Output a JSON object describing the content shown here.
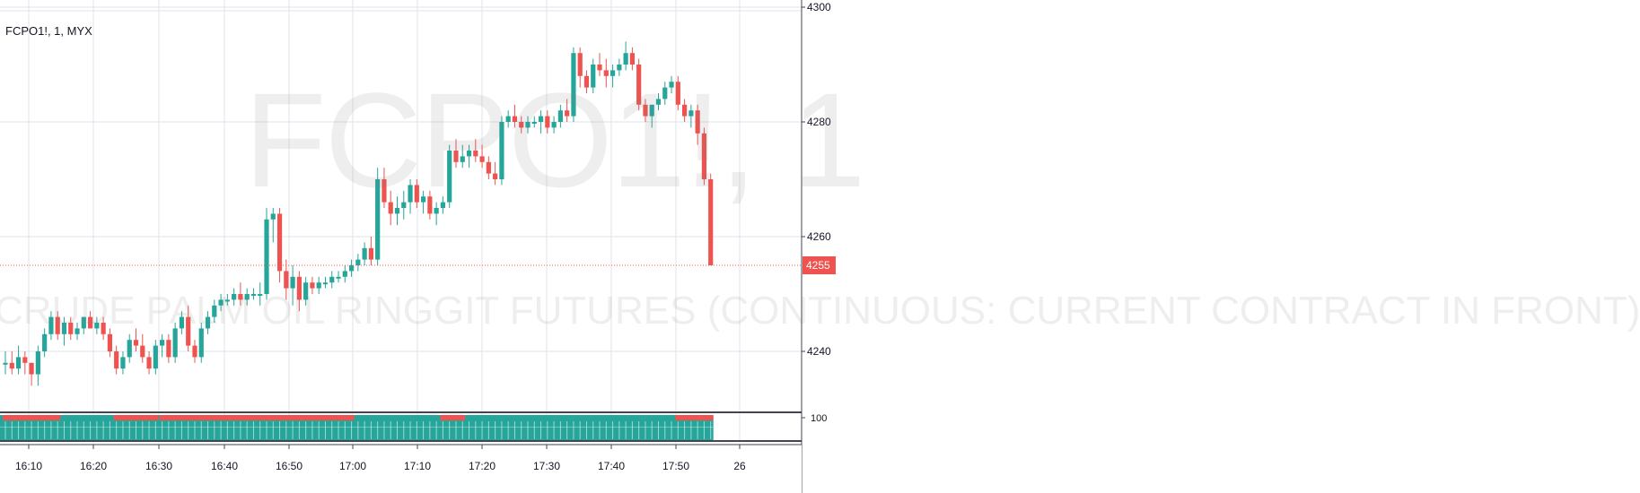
{
  "header": {
    "symbol_line": "FCPO1!, 1, MYX"
  },
  "watermark": {
    "symbol": "FCPO1!, 1",
    "description": "CRUDE PALM OIL RINGGIT FUTURES (CONTINUOUS: CURRENT CONTRACT IN FRONT)"
  },
  "colors": {
    "up": "#26a69a",
    "down": "#ef5350",
    "grid": "#e0e3eb",
    "axis_text": "#131722"
  },
  "chart_data": {
    "type": "candlestick",
    "price_axis": {
      "min": 4230,
      "max": 4300,
      "ticks": [
        4300,
        4280,
        4260,
        4240
      ]
    },
    "last_price": 4255,
    "time_axis_labels": [
      "16:10",
      "16:20",
      "16:30",
      "16:40",
      "16:50",
      "17:00",
      "17:10",
      "17:20",
      "17:30",
      "17:40",
      "17:50",
      "26"
    ],
    "indicator": {
      "label": "100"
    },
    "candles": [
      [
        4238,
        4240,
        4236,
        4238
      ],
      [
        4238,
        4240,
        4236,
        4237
      ],
      [
        4237,
        4241,
        4236,
        4239
      ],
      [
        4239,
        4240,
        4236,
        4238
      ],
      [
        4238,
        4238,
        4234,
        4236
      ],
      [
        4236,
        4241,
        4234,
        4240
      ],
      [
        4240,
        4244,
        4239,
        4243
      ],
      [
        4243,
        4247,
        4242,
        4246
      ],
      [
        4246,
        4247,
        4242,
        4243
      ],
      [
        4243,
        4246,
        4241,
        4245
      ],
      [
        4245,
        4246,
        4242,
        4243
      ],
      [
        4243,
        4245,
        4242,
        4244
      ],
      [
        4244,
        4246,
        4243,
        4246
      ],
      [
        4246,
        4247,
        4244,
        4244
      ],
      [
        4244,
        4246,
        4243,
        4245
      ],
      [
        4245,
        4246,
        4242,
        4243
      ],
      [
        4243,
        4244,
        4239,
        4240
      ],
      [
        4240,
        4241,
        4236,
        4237
      ],
      [
        4237,
        4240,
        4236,
        4239
      ],
      [
        4239,
        4243,
        4238,
        4242
      ],
      [
        4242,
        4244,
        4240,
        4241
      ],
      [
        4241,
        4243,
        4238,
        4239
      ],
      [
        4239,
        4240,
        4236,
        4237
      ],
      [
        4237,
        4242,
        4236,
        4241
      ],
      [
        4241,
        4243,
        4239,
        4242
      ],
      [
        4242,
        4243,
        4238,
        4239
      ],
      [
        4239,
        4245,
        4238,
        4244
      ],
      [
        4244,
        4247,
        4243,
        4246
      ],
      [
        4246,
        4248,
        4240,
        4241
      ],
      [
        4241,
        4242,
        4238,
        4239
      ],
      [
        4239,
        4245,
        4238,
        4244
      ],
      [
        4244,
        4247,
        4243,
        4246
      ],
      [
        4246,
        4249,
        4245,
        4248
      ],
      [
        4248,
        4250,
        4247,
        4249
      ],
      [
        4249,
        4250,
        4248,
        4249
      ],
      [
        4249,
        4251,
        4248,
        4250
      ],
      [
        4250,
        4252,
        4248,
        4249
      ],
      [
        4249,
        4251,
        4248,
        4250
      ],
      [
        4250,
        4251,
        4249,
        4250
      ],
      [
        4250,
        4252,
        4248,
        4250
      ],
      [
        4250,
        4265,
        4249,
        4263
      ],
      [
        4263,
        4265,
        4259,
        4264
      ],
      [
        4264,
        4265,
        4252,
        4254
      ],
      [
        4254,
        4256,
        4249,
        4251
      ],
      [
        4251,
        4255,
        4248,
        4253
      ],
      [
        4253,
        4254,
        4247,
        4249
      ],
      [
        4249,
        4253,
        4248,
        4252
      ],
      [
        4252,
        4253,
        4250,
        4251
      ],
      [
        4251,
        4253,
        4250,
        4252
      ],
      [
        4252,
        4253,
        4251,
        4252
      ],
      [
        4252,
        4254,
        4251,
        4253
      ],
      [
        4253,
        4254,
        4252,
        4253
      ],
      [
        4253,
        4255,
        4252,
        4254
      ],
      [
        4254,
        4256,
        4253,
        4255
      ],
      [
        4255,
        4257,
        4254,
        4256
      ],
      [
        4256,
        4259,
        4255,
        4258
      ],
      [
        4258,
        4260,
        4255,
        4256
      ],
      [
        4256,
        4272,
        4255,
        4270
      ],
      [
        4270,
        4272,
        4265,
        4266
      ],
      [
        4266,
        4268,
        4262,
        4264
      ],
      [
        4264,
        4267,
        4262,
        4265
      ],
      [
        4265,
        4268,
        4263,
        4266
      ],
      [
        4266,
        4270,
        4264,
        4269
      ],
      [
        4269,
        4270,
        4265,
        4266
      ],
      [
        4266,
        4268,
        4264,
        4267
      ],
      [
        4267,
        4268,
        4263,
        4264
      ],
      [
        4264,
        4266,
        4262,
        4265
      ],
      [
        4265,
        4267,
        4264,
        4266
      ],
      [
        4266,
        4276,
        4265,
        4275
      ],
      [
        4275,
        4277,
        4272,
        4273
      ],
      [
        4273,
        4276,
        4272,
        4274
      ],
      [
        4274,
        4276,
        4272,
        4275
      ],
      [
        4275,
        4277,
        4273,
        4274
      ],
      [
        4274,
        4276,
        4272,
        4273
      ],
      [
        4273,
        4274,
        4270,
        4271
      ],
      [
        4271,
        4273,
        4269,
        4270
      ],
      [
        4270,
        4281,
        4269,
        4280
      ],
      [
        4280,
        4282,
        4279,
        4281
      ],
      [
        4281,
        4283,
        4279,
        4280
      ],
      [
        4280,
        4281,
        4278,
        4279
      ],
      [
        4279,
        4281,
        4278,
        4280
      ],
      [
        4280,
        4281,
        4279,
        4280
      ],
      [
        4280,
        4282,
        4278,
        4281
      ],
      [
        4281,
        4282,
        4278,
        4279
      ],
      [
        4279,
        4281,
        4278,
        4280
      ],
      [
        4280,
        4283,
        4279,
        4282
      ],
      [
        4282,
        4284,
        4280,
        4281
      ],
      [
        4281,
        4293,
        4280,
        4292
      ],
      [
        4292,
        4293,
        4286,
        4288
      ],
      [
        4288,
        4289,
        4285,
        4286
      ],
      [
        4286,
        4291,
        4285,
        4290
      ],
      [
        4290,
        4292,
        4288,
        4289
      ],
      [
        4289,
        4291,
        4286,
        4288
      ],
      [
        4288,
        4290,
        4286,
        4289
      ],
      [
        4289,
        4291,
        4288,
        4290
      ],
      [
        4290,
        4294,
        4289,
        4292
      ],
      [
        4292,
        4293,
        4289,
        4290
      ],
      [
        4290,
        4291,
        4282,
        4283
      ],
      [
        4283,
        4284,
        4280,
        4281
      ],
      [
        4281,
        4283,
        4279,
        4283
      ],
      [
        4283,
        4285,
        4282,
        4284
      ],
      [
        4284,
        4287,
        4283,
        4286
      ],
      [
        4286,
        4288,
        4285,
        4287
      ],
      [
        4287,
        4288,
        4282,
        4283
      ],
      [
        4283,
        4284,
        4280,
        4281
      ],
      [
        4281,
        4283,
        4279,
        4282
      ],
      [
        4282,
        4283,
        4276,
        4278
      ],
      [
        4278,
        4279,
        4269,
        4270
      ],
      [
        4270,
        4271,
        4255,
        4255
      ]
    ]
  }
}
